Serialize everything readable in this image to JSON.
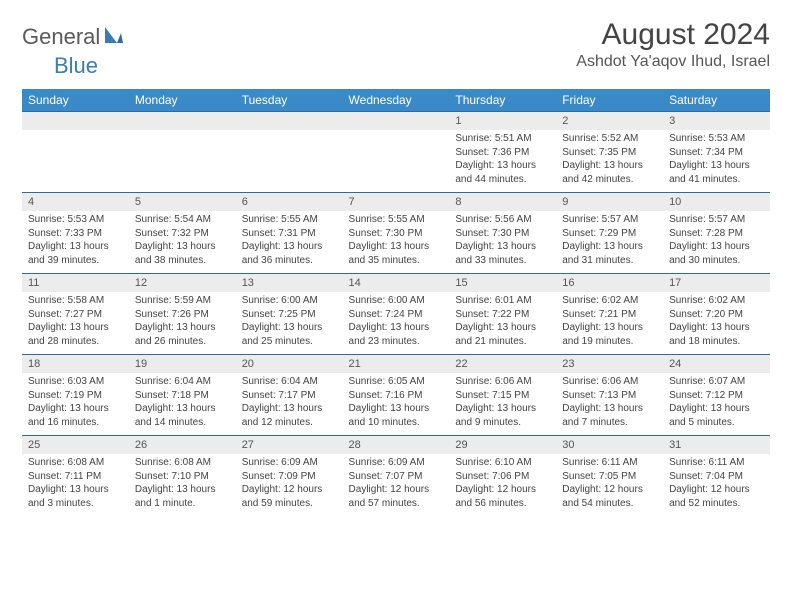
{
  "logo": {
    "part1": "General",
    "part2": "Blue"
  },
  "title": "August 2024",
  "location": "Ashdot Ya'aqov Ihud, Israel",
  "colors": {
    "header_bg": "#3a8ac8",
    "header_text": "#ffffff",
    "daynum_bg": "#ececec",
    "week_border": "#2d6aa0",
    "logo_gray": "#5a5a5a",
    "logo_blue": "#3a7db5"
  },
  "dayNames": [
    "Sunday",
    "Monday",
    "Tuesday",
    "Wednesday",
    "Thursday",
    "Friday",
    "Saturday"
  ],
  "weeks": [
    [
      {
        "n": "",
        "sr": "",
        "ss": "",
        "dl": ""
      },
      {
        "n": "",
        "sr": "",
        "ss": "",
        "dl": ""
      },
      {
        "n": "",
        "sr": "",
        "ss": "",
        "dl": ""
      },
      {
        "n": "",
        "sr": "",
        "ss": "",
        "dl": ""
      },
      {
        "n": "1",
        "sr": "Sunrise: 5:51 AM",
        "ss": "Sunset: 7:36 PM",
        "dl": "Daylight: 13 hours and 44 minutes."
      },
      {
        "n": "2",
        "sr": "Sunrise: 5:52 AM",
        "ss": "Sunset: 7:35 PM",
        "dl": "Daylight: 13 hours and 42 minutes."
      },
      {
        "n": "3",
        "sr": "Sunrise: 5:53 AM",
        "ss": "Sunset: 7:34 PM",
        "dl": "Daylight: 13 hours and 41 minutes."
      }
    ],
    [
      {
        "n": "4",
        "sr": "Sunrise: 5:53 AM",
        "ss": "Sunset: 7:33 PM",
        "dl": "Daylight: 13 hours and 39 minutes."
      },
      {
        "n": "5",
        "sr": "Sunrise: 5:54 AM",
        "ss": "Sunset: 7:32 PM",
        "dl": "Daylight: 13 hours and 38 minutes."
      },
      {
        "n": "6",
        "sr": "Sunrise: 5:55 AM",
        "ss": "Sunset: 7:31 PM",
        "dl": "Daylight: 13 hours and 36 minutes."
      },
      {
        "n": "7",
        "sr": "Sunrise: 5:55 AM",
        "ss": "Sunset: 7:30 PM",
        "dl": "Daylight: 13 hours and 35 minutes."
      },
      {
        "n": "8",
        "sr": "Sunrise: 5:56 AM",
        "ss": "Sunset: 7:30 PM",
        "dl": "Daylight: 13 hours and 33 minutes."
      },
      {
        "n": "9",
        "sr": "Sunrise: 5:57 AM",
        "ss": "Sunset: 7:29 PM",
        "dl": "Daylight: 13 hours and 31 minutes."
      },
      {
        "n": "10",
        "sr": "Sunrise: 5:57 AM",
        "ss": "Sunset: 7:28 PM",
        "dl": "Daylight: 13 hours and 30 minutes."
      }
    ],
    [
      {
        "n": "11",
        "sr": "Sunrise: 5:58 AM",
        "ss": "Sunset: 7:27 PM",
        "dl": "Daylight: 13 hours and 28 minutes."
      },
      {
        "n": "12",
        "sr": "Sunrise: 5:59 AM",
        "ss": "Sunset: 7:26 PM",
        "dl": "Daylight: 13 hours and 26 minutes."
      },
      {
        "n": "13",
        "sr": "Sunrise: 6:00 AM",
        "ss": "Sunset: 7:25 PM",
        "dl": "Daylight: 13 hours and 25 minutes."
      },
      {
        "n": "14",
        "sr": "Sunrise: 6:00 AM",
        "ss": "Sunset: 7:24 PM",
        "dl": "Daylight: 13 hours and 23 minutes."
      },
      {
        "n": "15",
        "sr": "Sunrise: 6:01 AM",
        "ss": "Sunset: 7:22 PM",
        "dl": "Daylight: 13 hours and 21 minutes."
      },
      {
        "n": "16",
        "sr": "Sunrise: 6:02 AM",
        "ss": "Sunset: 7:21 PM",
        "dl": "Daylight: 13 hours and 19 minutes."
      },
      {
        "n": "17",
        "sr": "Sunrise: 6:02 AM",
        "ss": "Sunset: 7:20 PM",
        "dl": "Daylight: 13 hours and 18 minutes."
      }
    ],
    [
      {
        "n": "18",
        "sr": "Sunrise: 6:03 AM",
        "ss": "Sunset: 7:19 PM",
        "dl": "Daylight: 13 hours and 16 minutes."
      },
      {
        "n": "19",
        "sr": "Sunrise: 6:04 AM",
        "ss": "Sunset: 7:18 PM",
        "dl": "Daylight: 13 hours and 14 minutes."
      },
      {
        "n": "20",
        "sr": "Sunrise: 6:04 AM",
        "ss": "Sunset: 7:17 PM",
        "dl": "Daylight: 13 hours and 12 minutes."
      },
      {
        "n": "21",
        "sr": "Sunrise: 6:05 AM",
        "ss": "Sunset: 7:16 PM",
        "dl": "Daylight: 13 hours and 10 minutes."
      },
      {
        "n": "22",
        "sr": "Sunrise: 6:06 AM",
        "ss": "Sunset: 7:15 PM",
        "dl": "Daylight: 13 hours and 9 minutes."
      },
      {
        "n": "23",
        "sr": "Sunrise: 6:06 AM",
        "ss": "Sunset: 7:13 PM",
        "dl": "Daylight: 13 hours and 7 minutes."
      },
      {
        "n": "24",
        "sr": "Sunrise: 6:07 AM",
        "ss": "Sunset: 7:12 PM",
        "dl": "Daylight: 13 hours and 5 minutes."
      }
    ],
    [
      {
        "n": "25",
        "sr": "Sunrise: 6:08 AM",
        "ss": "Sunset: 7:11 PM",
        "dl": "Daylight: 13 hours and 3 minutes."
      },
      {
        "n": "26",
        "sr": "Sunrise: 6:08 AM",
        "ss": "Sunset: 7:10 PM",
        "dl": "Daylight: 13 hours and 1 minute."
      },
      {
        "n": "27",
        "sr": "Sunrise: 6:09 AM",
        "ss": "Sunset: 7:09 PM",
        "dl": "Daylight: 12 hours and 59 minutes."
      },
      {
        "n": "28",
        "sr": "Sunrise: 6:09 AM",
        "ss": "Sunset: 7:07 PM",
        "dl": "Daylight: 12 hours and 57 minutes."
      },
      {
        "n": "29",
        "sr": "Sunrise: 6:10 AM",
        "ss": "Sunset: 7:06 PM",
        "dl": "Daylight: 12 hours and 56 minutes."
      },
      {
        "n": "30",
        "sr": "Sunrise: 6:11 AM",
        "ss": "Sunset: 7:05 PM",
        "dl": "Daylight: 12 hours and 54 minutes."
      },
      {
        "n": "31",
        "sr": "Sunrise: 6:11 AM",
        "ss": "Sunset: 7:04 PM",
        "dl": "Daylight: 12 hours and 52 minutes."
      }
    ]
  ]
}
